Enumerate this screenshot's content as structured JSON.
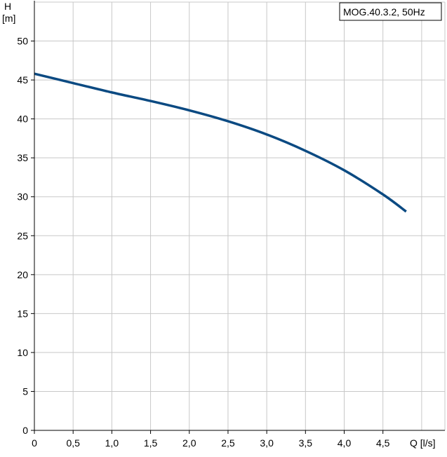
{
  "chart_data": {
    "type": "line",
    "legend": "MOG.40.3.2, 50Hz",
    "ylabel_line1": "H",
    "ylabel_line2": "[m]",
    "xlabel": "Q [l/s]",
    "xlim": [
      0,
      5.3
    ],
    "ylim": [
      0,
      55
    ],
    "x_ticks": [
      0,
      0.5,
      1.0,
      1.5,
      2.0,
      2.5,
      3.0,
      3.5,
      4.0,
      4.5
    ],
    "x_tick_labels": [
      "0",
      "0,5",
      "1,0",
      "1,5",
      "2,0",
      "2,5",
      "3,0",
      "3,5",
      "4,0",
      "4,5"
    ],
    "y_ticks": [
      0,
      5,
      10,
      15,
      20,
      25,
      30,
      35,
      40,
      45,
      50
    ],
    "y_tick_labels": [
      "0",
      "5",
      "10",
      "15",
      "20",
      "25",
      "30",
      "35",
      "40",
      "45",
      "50"
    ],
    "grid": true,
    "series": [
      {
        "color": "#0b4a82",
        "x": [
          0,
          0.5,
          1.0,
          1.5,
          2.0,
          2.5,
          3.0,
          3.5,
          4.0,
          4.5,
          4.8
        ],
        "y": [
          45.8,
          44.6,
          43.4,
          42.3,
          41.1,
          39.7,
          38.0,
          35.9,
          33.4,
          30.3,
          28.1
        ]
      }
    ]
  }
}
